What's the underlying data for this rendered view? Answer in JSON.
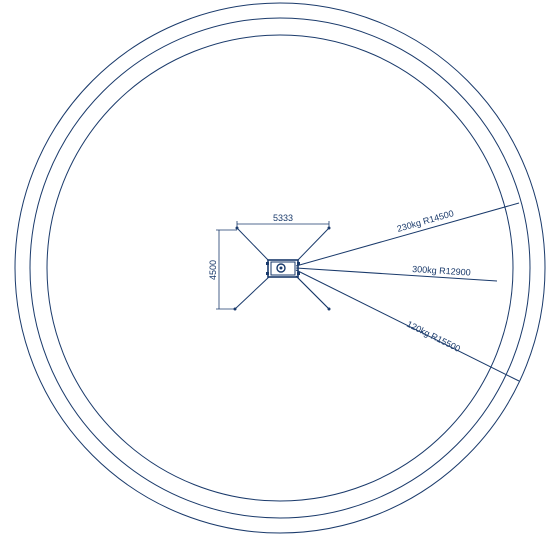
{
  "diagram": {
    "line_color": "#1a3a6b",
    "background": "#ffffff",
    "circles": [
      {
        "name": "outer-circle"
      },
      {
        "name": "middle-circle"
      },
      {
        "name": "inner-circle"
      }
    ],
    "dimensions": {
      "width": "5333",
      "height": "4500"
    },
    "radius_labels": [
      {
        "name": "radius-label-230kg",
        "text": "230kg  R14500"
      },
      {
        "name": "radius-label-300kg",
        "text": "300kg  R12900"
      },
      {
        "name": "radius-label-120kg",
        "text": "120kg  R15500"
      }
    ]
  }
}
